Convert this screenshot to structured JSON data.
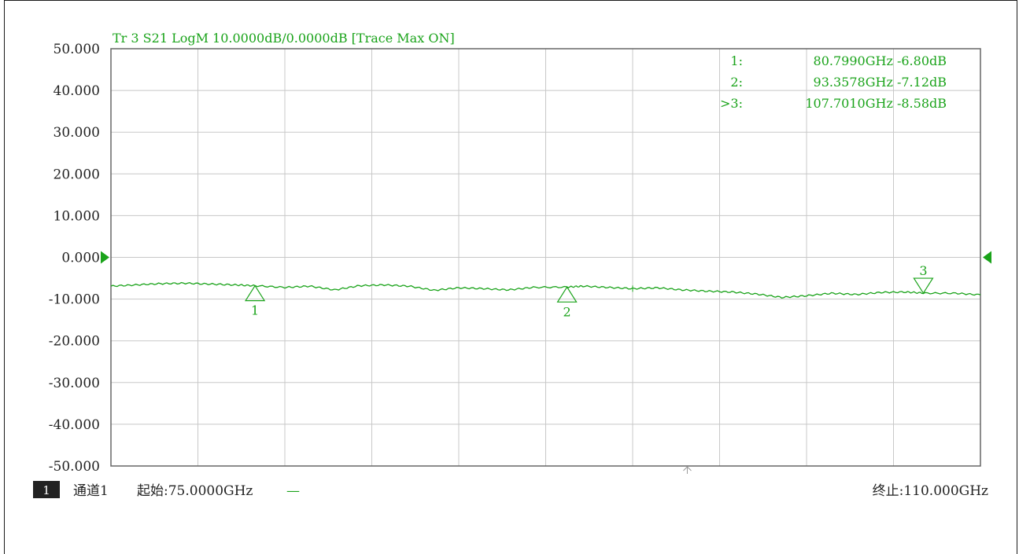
{
  "chart_data": {
    "type": "line",
    "title": "Tr 3  S21 LogM 10.0000dB/0.0000dB  [Trace Max ON]",
    "ylim": [
      -50,
      50
    ],
    "xlim": [
      75.0,
      110.0
    ],
    "y_tick_labels": [
      "50.000",
      "40.000",
      "30.000",
      "20.000",
      "10.000",
      "0.000",
      "-10.000",
      "-20.000",
      "-30.000",
      "-40.000",
      "-50.000"
    ],
    "grid": true,
    "reference_level": 0,
    "series": [
      {
        "color": "#1aa31a",
        "x": [
          75.0,
          76.0,
          77.0,
          78.0,
          79.0,
          80.0,
          80.8,
          82.0,
          83.0,
          84.0,
          85.0,
          86.0,
          87.0,
          88.0,
          89.0,
          90.0,
          91.0,
          92.0,
          93.36,
          94.0,
          95.0,
          96.0,
          97.0,
          98.0,
          99.0,
          100.0,
          101.0,
          102.0,
          103.0,
          104.0,
          105.0,
          106.0,
          107.0,
          107.77,
          109.0,
          110.0
        ],
        "y": [
          -6.9,
          -6.6,
          -6.3,
          -6.2,
          -6.4,
          -6.6,
          -6.8,
          -7.2,
          -6.9,
          -7.8,
          -6.8,
          -6.6,
          -6.9,
          -7.9,
          -7.3,
          -7.5,
          -7.8,
          -7.2,
          -7.12,
          -6.9,
          -7.2,
          -7.5,
          -7.3,
          -7.8,
          -8.1,
          -8.3,
          -8.8,
          -9.6,
          -9.2,
          -8.6,
          -8.9,
          -8.4,
          -8.3,
          -8.58,
          -8.6,
          -9.0
        ]
      }
    ],
    "markers": [
      {
        "id": "1",
        "x": 80.799,
        "y": -6.8,
        "readout": "80.7990GHz -6.80dB",
        "label_prefix": "1:"
      },
      {
        "id": "2",
        "x": 93.3578,
        "y": -7.12,
        "readout": "93.3578GHz -7.12dB",
        "label_prefix": "2:"
      },
      {
        "id": "3",
        "x": 107.701,
        "y": -8.58,
        "readout": "107.7010GHz -8.58dB",
        "label_prefix": ">3:"
      }
    ]
  },
  "footer": {
    "channel_number": "1",
    "channel_label": "通道1",
    "start_label": "起始:75.0000GHz",
    "start_suffix": "—",
    "stop_label": "终止:110.000GHz"
  },
  "colors": {
    "trace": "#1aa31a",
    "grid": "#c8c8c8",
    "axis": "#666666"
  }
}
